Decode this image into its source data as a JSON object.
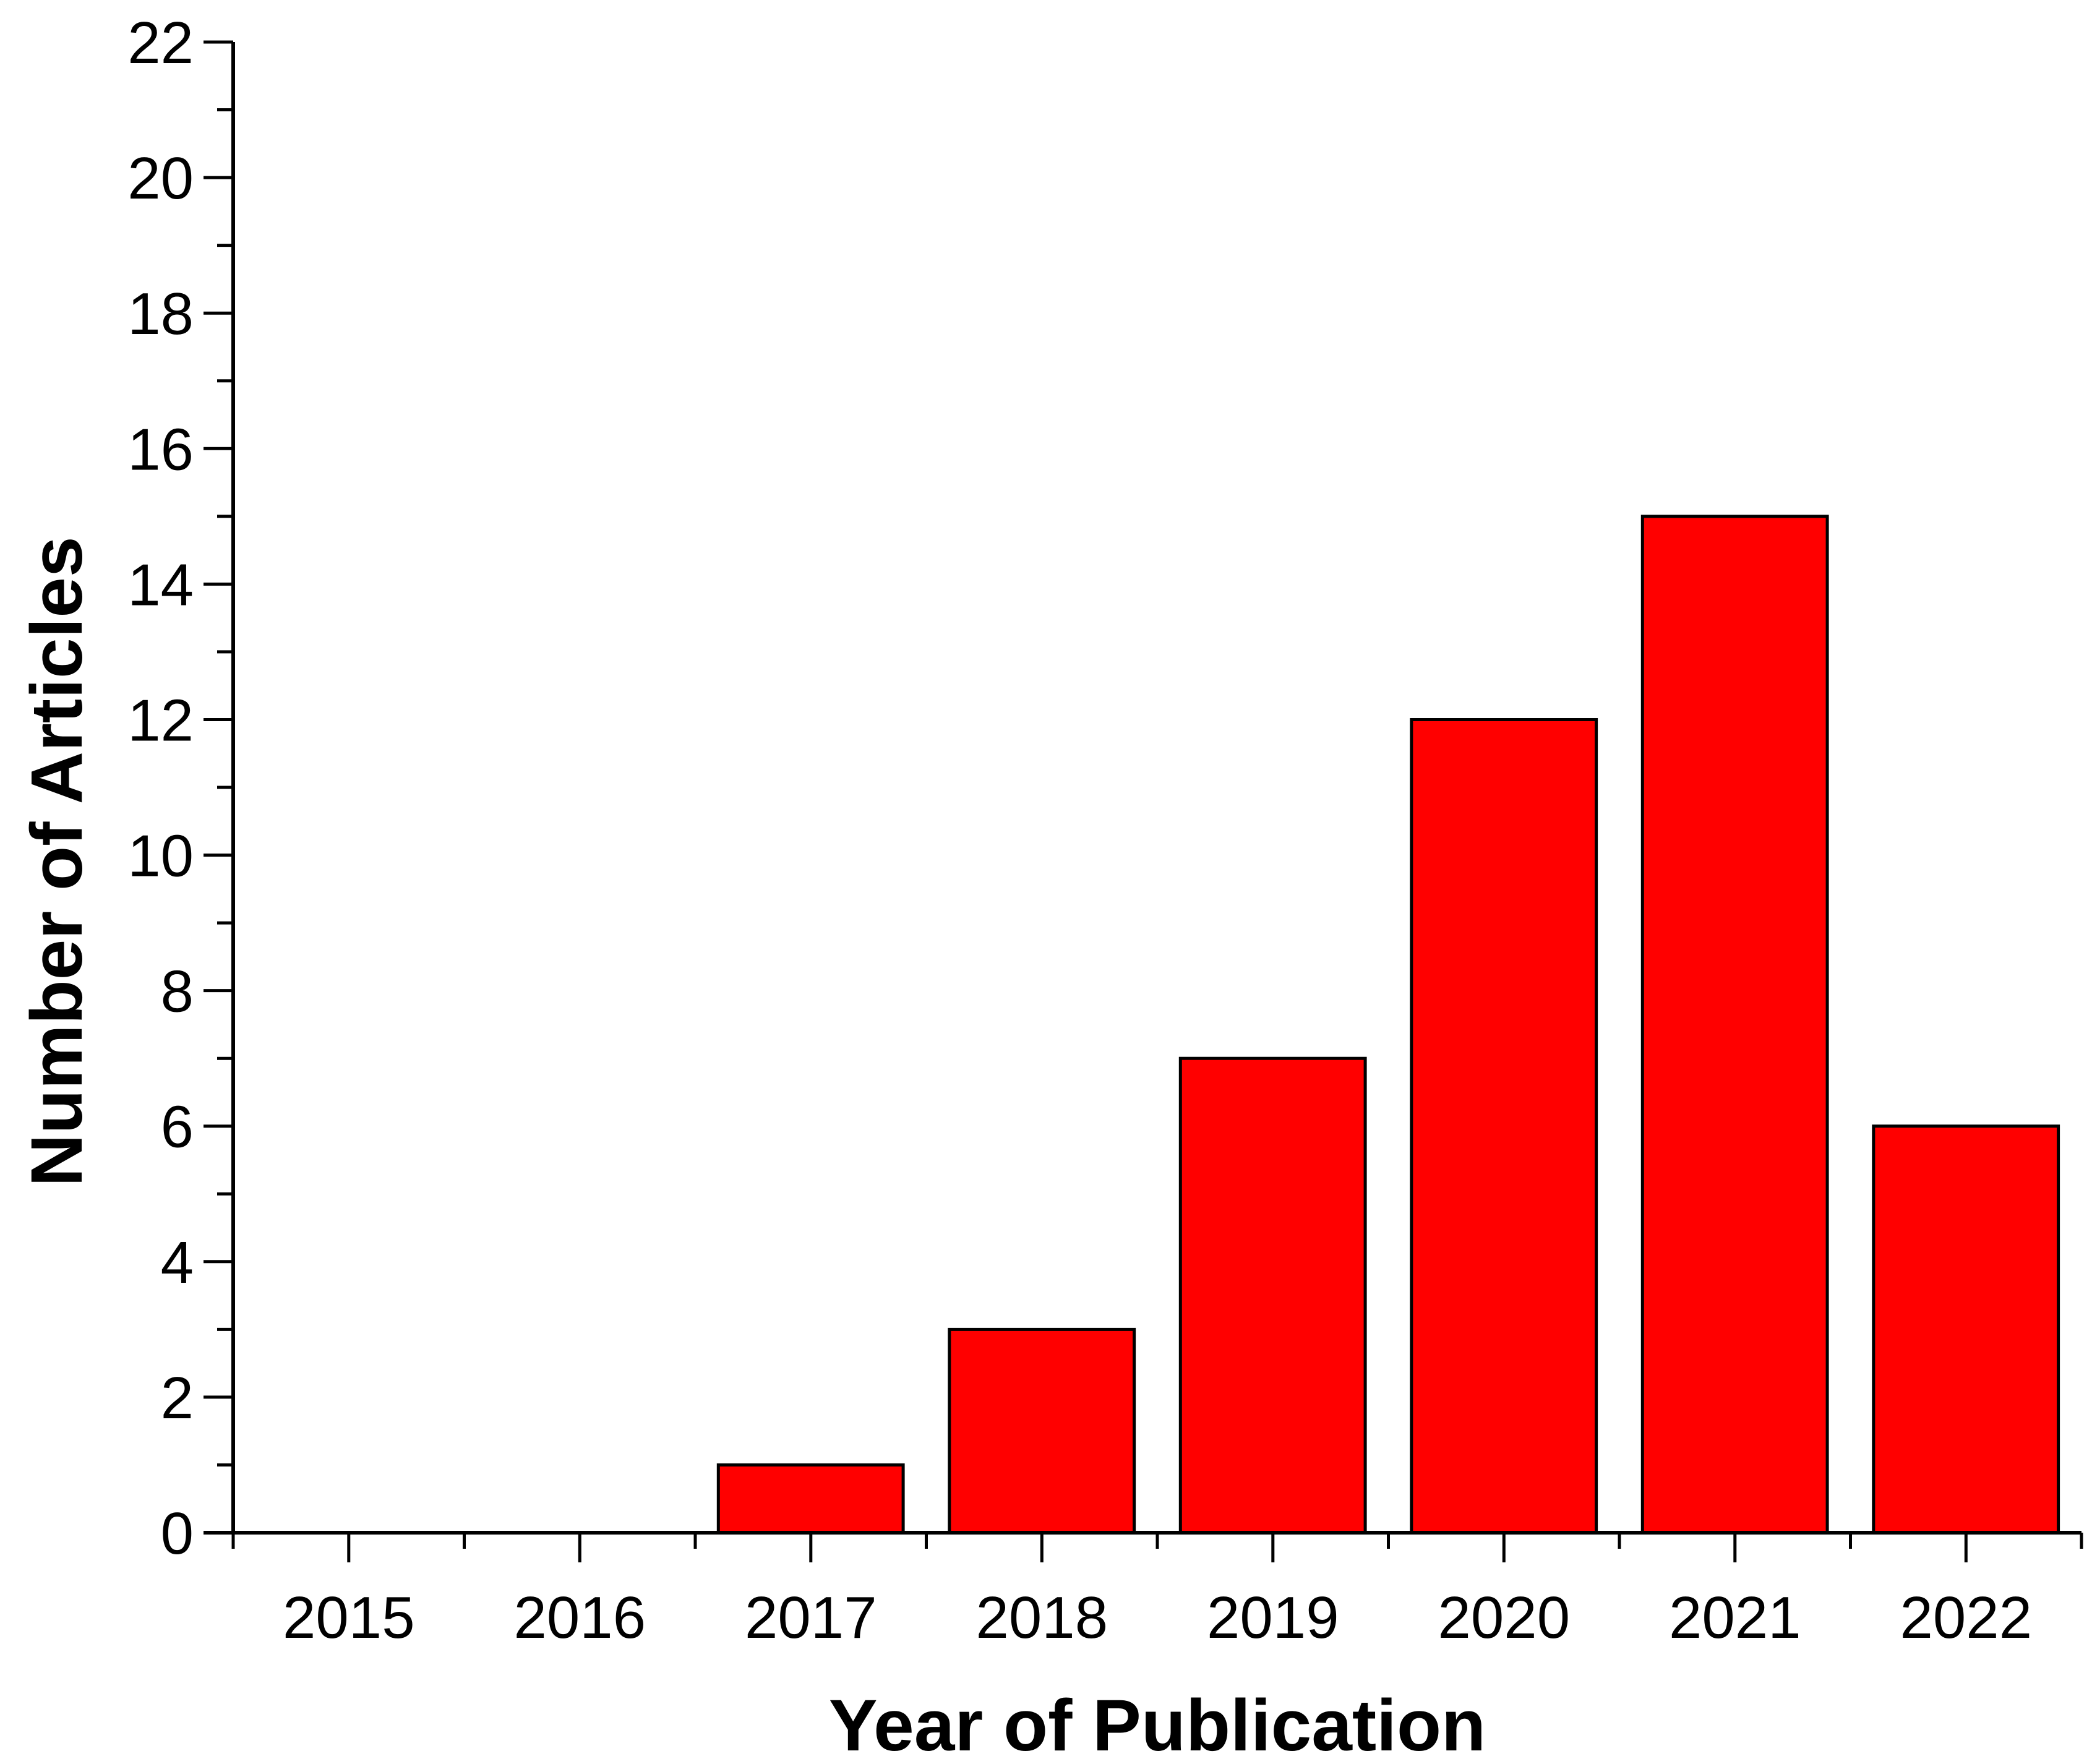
{
  "chart_data": {
    "type": "bar",
    "categories": [
      "2015",
      "2016",
      "2017",
      "2018",
      "2019",
      "2020",
      "2021",
      "2022"
    ],
    "values": [
      0,
      0,
      1,
      3,
      7,
      12,
      15,
      6
    ],
    "title": "",
    "xlabel": "Year of Publication",
    "ylabel": "Number of Articles",
    "ylim": [
      0,
      22
    ],
    "y_major_step": 2,
    "y_minor_step": 1,
    "y_ticks": [
      "0",
      "2",
      "4",
      "6",
      "8",
      "10",
      "12",
      "14",
      "16",
      "18",
      "20",
      "22"
    ],
    "grid": false,
    "legend": "none",
    "bar_color": "#ff0000",
    "edge_color": "#000000",
    "axis_color": "#000000"
  }
}
